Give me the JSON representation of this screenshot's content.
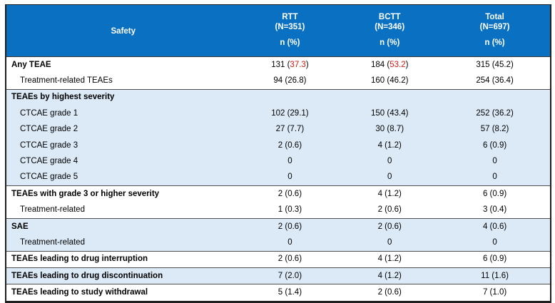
{
  "colors": {
    "header_bg": "#0a70c2",
    "header_text": "#ffffff",
    "shaded_row_bg": "#dce9f6",
    "red_value": "#d11b10",
    "border_dark": "#1f1f1f",
    "rule_color": "#4f4f4f"
  },
  "table": {
    "header": {
      "label": "Safety",
      "columns": [
        {
          "name": "RTT",
          "n": "(N=351)",
          "sub": "n (%)"
        },
        {
          "name": "BCTT",
          "n": "(N=346)",
          "sub": "n (%)"
        },
        {
          "name": "Total",
          "n": "(N=697)",
          "sub": "n (%)"
        }
      ]
    },
    "rows": [
      {
        "label": "Any TEAE",
        "bold": true,
        "indent": false,
        "shaded": false,
        "rule": false,
        "values": [
          "131 (37.3)",
          "184 (53.2)",
          "315 (45.2)"
        ],
        "red": [
          true,
          true,
          false
        ]
      },
      {
        "label": "Treatment-related TEAEs",
        "bold": false,
        "indent": true,
        "shaded": false,
        "rule": false,
        "values": [
          "94 (26.8)",
          "160 (46.2)",
          "254 (36.4)"
        ]
      },
      {
        "label": "TEAEs by highest severity",
        "bold": true,
        "indent": false,
        "shaded": true,
        "rule": true,
        "values": [
          "",
          "",
          ""
        ]
      },
      {
        "label": "CTCAE grade 1",
        "bold": false,
        "indent": true,
        "shaded": true,
        "rule": false,
        "values": [
          "102 (29.1)",
          "150 (43.4)",
          "252 (36.2)"
        ]
      },
      {
        "label": "CTCAE grade 2",
        "bold": false,
        "indent": true,
        "shaded": true,
        "rule": false,
        "values": [
          "27 (7.7)",
          "30 (8.7)",
          "57 (8.2)"
        ]
      },
      {
        "label": "CTCAE grade 3",
        "bold": false,
        "indent": true,
        "shaded": true,
        "rule": false,
        "values": [
          "2 (0.6)",
          "4 (1.2)",
          "6 (0.9)"
        ]
      },
      {
        "label": "CTCAE grade 4",
        "bold": false,
        "indent": true,
        "shaded": true,
        "rule": false,
        "values": [
          "0",
          "0",
          "0"
        ]
      },
      {
        "label": "CTCAE grade 5",
        "bold": false,
        "indent": true,
        "shaded": true,
        "rule": false,
        "values": [
          "0",
          "0",
          "0"
        ]
      },
      {
        "label": "TEAEs with grade 3 or higher severity",
        "bold": true,
        "indent": false,
        "shaded": false,
        "rule": true,
        "values": [
          "2 (0.6)",
          "4 (1.2)",
          "6 (0.9)"
        ]
      },
      {
        "label": "Treatment-related",
        "bold": false,
        "indent": true,
        "shaded": false,
        "rule": false,
        "values": [
          "1 (0.3)",
          "2 (0.6)",
          "3 (0.4)"
        ]
      },
      {
        "label": "SAE",
        "bold": true,
        "indent": false,
        "shaded": true,
        "rule": true,
        "values": [
          "2 (0.6)",
          "2 (0.6)",
          "4 (0.6)"
        ]
      },
      {
        "label": "Treatment-related",
        "bold": false,
        "indent": true,
        "shaded": true,
        "rule": false,
        "values": [
          "0",
          "0",
          "0"
        ]
      },
      {
        "label": "TEAEs leading to drug interruption",
        "bold": true,
        "indent": false,
        "shaded": false,
        "rule": true,
        "values": [
          "2 (0.6)",
          "4 (1.2)",
          "6 (0.9)"
        ]
      },
      {
        "label": "TEAEs leading to drug discontinuation",
        "bold": true,
        "indent": false,
        "shaded": true,
        "rule": true,
        "values": [
          "7 (2.0)",
          "4 (1.2)",
          "11 (1.6)"
        ]
      },
      {
        "label": "TEAEs leading to study withdrawal",
        "bold": true,
        "indent": false,
        "shaded": false,
        "rule": true,
        "values": [
          "5 (1.4)",
          "2 (0.6)",
          "7 (1.0)"
        ]
      }
    ]
  }
}
